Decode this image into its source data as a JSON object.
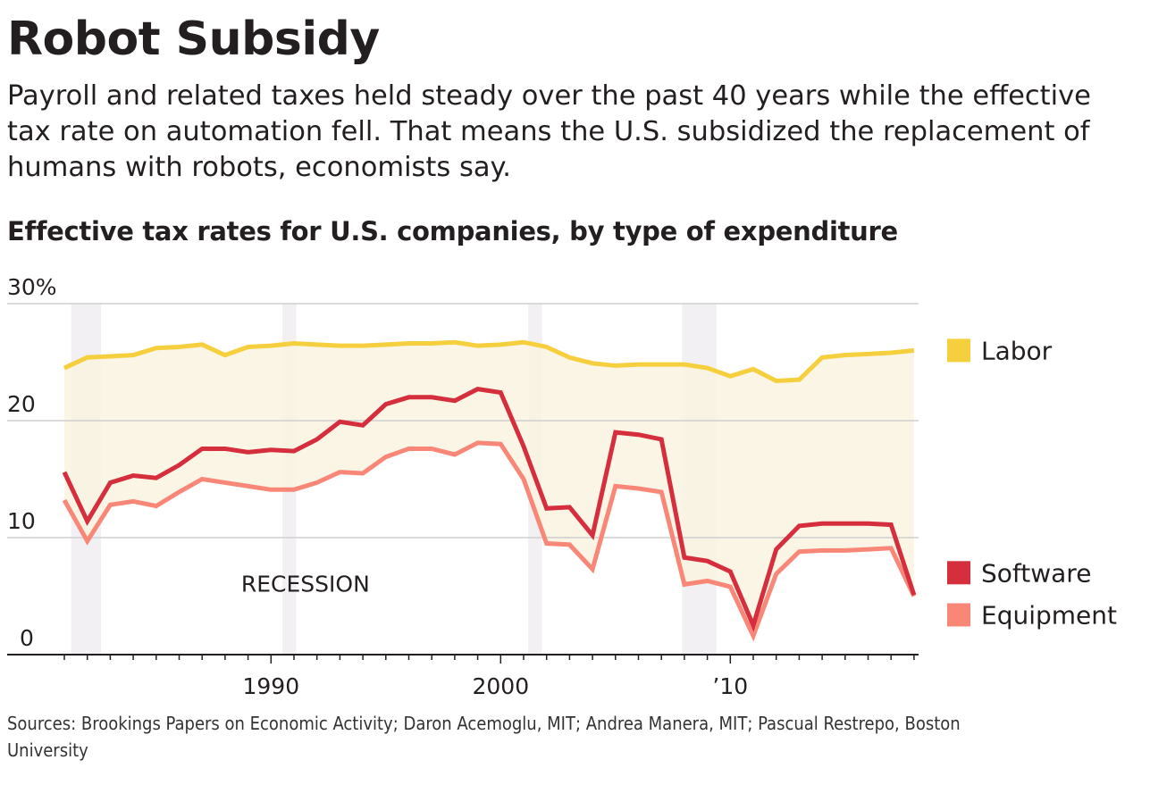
{
  "header": {
    "title": "Robot Subsidy",
    "dek": "Payroll and related taxes held steady over the past 40 years while the effective tax rate on automation fell. That means the U.S. subsidized the replacement of humans with robots, economists say.",
    "subhead": "Effective tax rates for U.S. companies, by type of expenditure"
  },
  "footer": {
    "sources": "Sources: Brookings Papers on Economic Activity; Daron Acemoglu, MIT; Andrea Manera, MIT; Pascual Restrepo, Boston University"
  },
  "chart_data": {
    "type": "line",
    "title": "Effective tax rates for U.S. companies, by type of expenditure",
    "xlabel": "",
    "ylabel": "",
    "x": [
      1981,
      1982,
      1983,
      1984,
      1985,
      1986,
      1987,
      1988,
      1989,
      1990,
      1991,
      1992,
      1993,
      1994,
      1995,
      1996,
      1997,
      1998,
      1999,
      2000,
      2001,
      2002,
      2003,
      2004,
      2005,
      2006,
      2007,
      2008,
      2009,
      2010,
      2011,
      2012,
      2013,
      2014,
      2015,
      2016,
      2017,
      2018
    ],
    "xlim": [
      1980.6,
      2018.2
    ],
    "ylim": [
      0,
      30
    ],
    "grid": true,
    "y_ticks": [
      {
        "value": 0,
        "label": "0"
      },
      {
        "value": 10,
        "label": "10"
      },
      {
        "value": 20,
        "label": "20"
      },
      {
        "value": 30,
        "label": "30%"
      }
    ],
    "x_ticks": [
      {
        "value": 1990,
        "label": "1990"
      },
      {
        "value": 2000,
        "label": "2000"
      },
      {
        "value": 2010,
        "label": "’10"
      }
    ],
    "x_minor_tick_every": 1,
    "series": [
      {
        "name": "Labor",
        "color": "#f5cf3d",
        "values": [
          24.5,
          25.4,
          25.5,
          25.6,
          26.2,
          26.3,
          26.5,
          25.6,
          26.3,
          26.4,
          26.6,
          26.5,
          26.4,
          26.4,
          26.5,
          26.6,
          26.6,
          26.7,
          26.4,
          26.5,
          26.7,
          26.3,
          25.4,
          24.9,
          24.7,
          24.8,
          24.8,
          24.8,
          24.5,
          23.8,
          24.4,
          23.4,
          23.5,
          25.4,
          25.6,
          25.7,
          25.8,
          26.0
        ]
      },
      {
        "name": "Software",
        "color": "#d52e3c",
        "values": [
          15.6,
          11.4,
          14.7,
          15.3,
          15.1,
          16.2,
          17.6,
          17.6,
          17.3,
          17.5,
          17.4,
          18.4,
          19.9,
          19.6,
          21.4,
          22.0,
          22.0,
          21.7,
          22.7,
          22.4,
          17.8,
          12.5,
          12.6,
          10.2,
          19.0,
          18.8,
          18.4,
          8.3,
          8.0,
          7.1,
          2.5,
          9.0,
          11.0,
          11.2,
          11.2,
          11.2,
          11.1,
          5.1
        ]
      },
      {
        "name": "Equipment",
        "color": "#f98778",
        "values": [
          13.2,
          9.7,
          12.8,
          13.1,
          12.7,
          13.9,
          15.0,
          14.7,
          14.4,
          14.1,
          14.1,
          14.7,
          15.6,
          15.5,
          16.9,
          17.6,
          17.6,
          17.1,
          18.1,
          18.0,
          15.0,
          9.5,
          9.4,
          7.3,
          14.4,
          14.2,
          13.9,
          6.0,
          6.3,
          5.8,
          1.6,
          6.9,
          8.8,
          8.9,
          8.9,
          9.0,
          9.1,
          5.0
        ]
      }
    ],
    "shaded_area": {
      "between": [
        "Labor",
        "Equipment"
      ],
      "color": "#faf3e0"
    },
    "recessions": [
      {
        "start": 1981.3,
        "end": 1982.6
      },
      {
        "start": 1990.5,
        "end": 1991.1
      },
      {
        "start": 2001.2,
        "end": 2001.8
      },
      {
        "start": 2007.9,
        "end": 2009.4
      }
    ],
    "recession_color": "#f2f0f2",
    "annotations": [
      {
        "text": "RECESSION",
        "x": 1991.5,
        "y": 5.4
      }
    ],
    "legend": [
      {
        "name": "Labor",
        "color": "#f5cf3d",
        "y": 26.0
      },
      {
        "name": "Software",
        "color": "#d52e3c",
        "y": 7.0
      },
      {
        "name": "Equipment",
        "color": "#f98778",
        "y": 3.4
      }
    ],
    "legend_placement": "right"
  }
}
